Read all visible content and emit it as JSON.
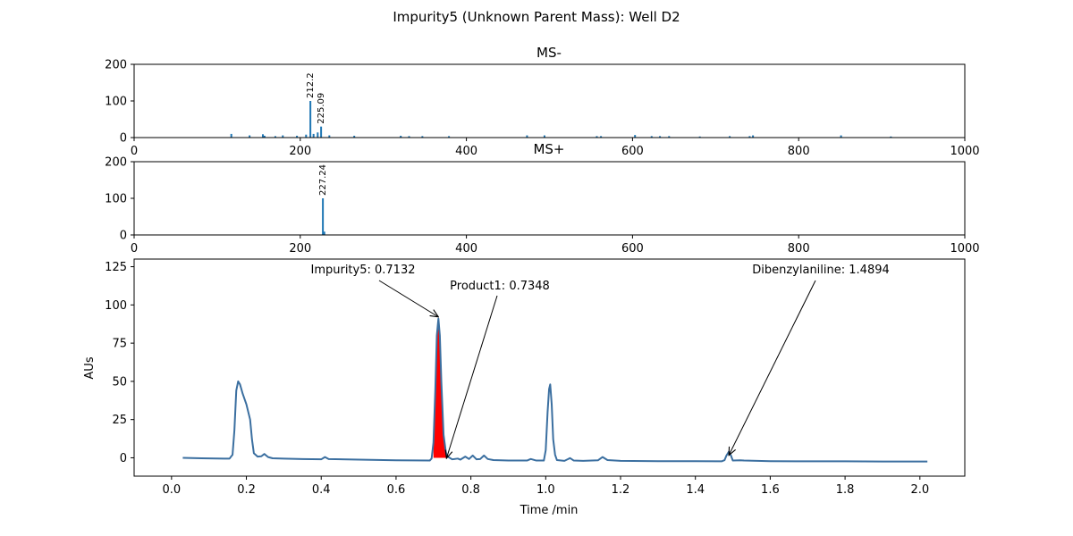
{
  "figure_title": "Impurity5 (Unknown Parent Mass): Well D2",
  "colors": {
    "trace": "#3b6fa0",
    "bar": "#1f77b4",
    "highlight": "#ff0000"
  },
  "chart_data": [
    {
      "id": "ms_minus",
      "type": "bar",
      "title": "MS-",
      "xlabel": "",
      "ylabel": "",
      "xlim": [
        0,
        1000
      ],
      "ylim": [
        0,
        200
      ],
      "xticks": [
        0,
        200,
        400,
        600,
        800,
        1000
      ],
      "yticks": [
        0,
        100,
        200
      ],
      "bars": [
        {
          "x": 117,
          "y": 10
        },
        {
          "x": 139,
          "y": 6
        },
        {
          "x": 155,
          "y": 9
        },
        {
          "x": 157,
          "y": 5
        },
        {
          "x": 170,
          "y": 4
        },
        {
          "x": 179,
          "y": 6
        },
        {
          "x": 196,
          "y": 5
        },
        {
          "x": 207,
          "y": 8
        },
        {
          "x": 212.2,
          "y": 100,
          "label": "212.2"
        },
        {
          "x": 216,
          "y": 10
        },
        {
          "x": 221,
          "y": 14
        },
        {
          "x": 225.09,
          "y": 30,
          "label": "225.09"
        },
        {
          "x": 235,
          "y": 6
        },
        {
          "x": 265,
          "y": 5
        },
        {
          "x": 321,
          "y": 5
        },
        {
          "x": 331,
          "y": 4
        },
        {
          "x": 347,
          "y": 4
        },
        {
          "x": 379,
          "y": 4
        },
        {
          "x": 473,
          "y": 6
        },
        {
          "x": 494,
          "y": 6
        },
        {
          "x": 557,
          "y": 4
        },
        {
          "x": 562,
          "y": 4
        },
        {
          "x": 603,
          "y": 7
        },
        {
          "x": 623,
          "y": 4
        },
        {
          "x": 633,
          "y": 4
        },
        {
          "x": 644,
          "y": 4
        },
        {
          "x": 681,
          "y": 3
        },
        {
          "x": 717,
          "y": 4
        },
        {
          "x": 741,
          "y": 4
        },
        {
          "x": 745,
          "y": 6
        },
        {
          "x": 851,
          "y": 6
        },
        {
          "x": 911,
          "y": 3
        }
      ]
    },
    {
      "id": "ms_plus",
      "type": "bar",
      "title": "MS+",
      "xlabel": "",
      "ylabel": "",
      "xlim": [
        0,
        1000
      ],
      "ylim": [
        0,
        200
      ],
      "xticks": [
        0,
        200,
        400,
        600,
        800,
        1000
      ],
      "yticks": [
        0,
        100,
        200
      ],
      "bars": [
        {
          "x": 227.24,
          "y": 100,
          "label": "227.24"
        },
        {
          "x": 229,
          "y": 9
        }
      ]
    },
    {
      "id": "chromatogram",
      "type": "line",
      "title": "",
      "xlabel": "Time /min",
      "ylabel": "AUs",
      "xlim": [
        -0.1,
        2.12
      ],
      "ylim": [
        -12,
        130
      ],
      "xticks": [
        0.0,
        0.2,
        0.4,
        0.6,
        0.8,
        1.0,
        1.2,
        1.4,
        1.6,
        1.8,
        2.0
      ],
      "yticks": [
        0,
        25,
        50,
        75,
        100,
        125
      ],
      "x_tick_labels": [
        "0.0",
        "0.2",
        "0.4",
        "0.6",
        "0.8",
        "1.0",
        "1.2",
        "1.4",
        "1.6",
        "1.8",
        "2.0"
      ],
      "series": [
        {
          "points": [
            [
              0.03,
              0.0
            ],
            [
              0.08,
              -0.3
            ],
            [
              0.14,
              -0.5
            ],
            [
              0.155,
              -0.5
            ],
            [
              0.163,
              2
            ],
            [
              0.168,
              18
            ],
            [
              0.173,
              44
            ],
            [
              0.178,
              50
            ],
            [
              0.183,
              48
            ],
            [
              0.19,
              42
            ],
            [
              0.2,
              35
            ],
            [
              0.21,
              25
            ],
            [
              0.215,
              12
            ],
            [
              0.22,
              3
            ],
            [
              0.23,
              0.8
            ],
            [
              0.24,
              1.0
            ],
            [
              0.248,
              2.5
            ],
            [
              0.258,
              0.5
            ],
            [
              0.27,
              -0.3
            ],
            [
              0.3,
              -0.5
            ],
            [
              0.35,
              -0.8
            ],
            [
              0.4,
              -1.0
            ],
            [
              0.41,
              0.5
            ],
            [
              0.42,
              -0.8
            ],
            [
              0.5,
              -1.2
            ],
            [
              0.6,
              -1.6
            ],
            [
              0.69,
              -1.8
            ],
            [
              0.695,
              -0.5
            ],
            [
              0.7,
              10
            ],
            [
              0.705,
              45
            ],
            [
              0.709,
              80
            ],
            [
              0.7132,
              91
            ],
            [
              0.717,
              80
            ],
            [
              0.721,
              50
            ],
            [
              0.727,
              15
            ],
            [
              0.733,
              4
            ],
            [
              0.7348,
              2
            ],
            [
              0.74,
              0.5
            ],
            [
              0.75,
              -1.0
            ],
            [
              0.765,
              -0.5
            ],
            [
              0.772,
              -1.2
            ],
            [
              0.785,
              0.8
            ],
            [
              0.795,
              -0.8
            ],
            [
              0.805,
              1.5
            ],
            [
              0.815,
              -1.0
            ],
            [
              0.825,
              -0.8
            ],
            [
              0.835,
              1.5
            ],
            [
              0.845,
              -0.8
            ],
            [
              0.86,
              -1.5
            ],
            [
              0.9,
              -1.8
            ],
            [
              0.95,
              -1.8
            ],
            [
              0.96,
              -0.8
            ],
            [
              0.975,
              -1.8
            ],
            [
              0.995,
              -1.8
            ],
            [
              1.0,
              5
            ],
            [
              1.005,
              30
            ],
            [
              1.009,
              45
            ],
            [
              1.012,
              48
            ],
            [
              1.016,
              35
            ],
            [
              1.02,
              12
            ],
            [
              1.025,
              2
            ],
            [
              1.03,
              -1.5
            ],
            [
              1.05,
              -2.0
            ],
            [
              1.065,
              -0.2
            ],
            [
              1.075,
              -1.8
            ],
            [
              1.1,
              -2.0
            ],
            [
              1.14,
              -1.6
            ],
            [
              1.152,
              0.5
            ],
            [
              1.165,
              -1.5
            ],
            [
              1.2,
              -2.0
            ],
            [
              1.3,
              -2.2
            ],
            [
              1.4,
              -2.2
            ],
            [
              1.47,
              -2.3
            ],
            [
              1.478,
              -1.5
            ],
            [
              1.483,
              1.5
            ],
            [
              1.4894,
              4
            ],
            [
              1.495,
              1.5
            ],
            [
              1.5,
              -1.8
            ],
            [
              1.52,
              -1.6
            ],
            [
              1.53,
              -1.8
            ],
            [
              1.6,
              -2.2
            ],
            [
              1.7,
              -2.3
            ],
            [
              1.8,
              -2.3
            ],
            [
              1.9,
              -2.4
            ],
            [
              2.02,
              -2.4
            ]
          ]
        }
      ],
      "highlight_region": {
        "x_start": 0.7,
        "x_end": 0.735
      },
      "annotations": [
        {
          "text": "Impurity5: 0.7132",
          "x": 0.7132,
          "y": 91
        },
        {
          "text": "Product1: 0.7348",
          "x": 0.7348,
          "y": 2
        },
        {
          "text": "Dibenzylaniline: 1.4894",
          "x": 1.4894,
          "y": 4
        }
      ]
    }
  ]
}
